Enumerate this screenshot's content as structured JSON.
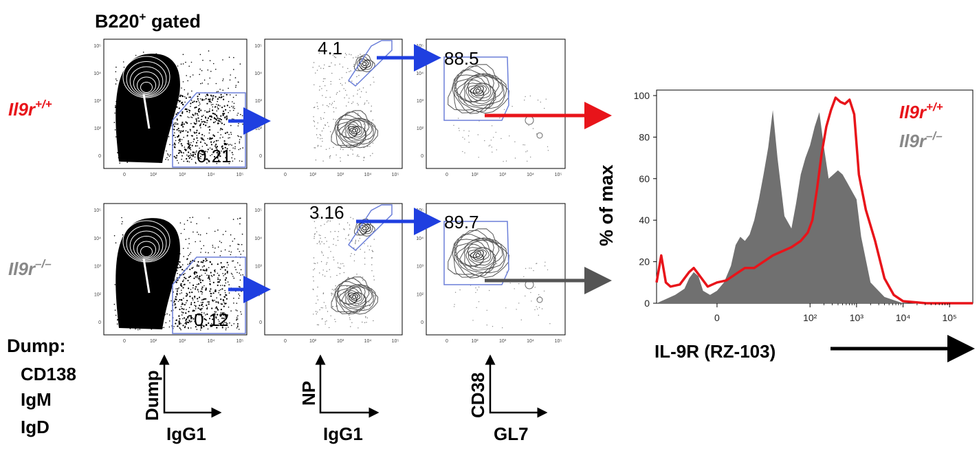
{
  "gate_header": {
    "base": "B220",
    "sup": "+",
    "suffix": " gated"
  },
  "genotypes": [
    {
      "base": "Il9r",
      "sup": "+/+",
      "color": "#e8141a"
    },
    {
      "base": "Il9r",
      "sup": "–/–",
      "color": "#888888"
    }
  ],
  "dump": {
    "title": "Dump:",
    "markers": [
      "CD138",
      "IgM",
      "IgD"
    ]
  },
  "columns": [
    {
      "y_label": "Dump",
      "x_label": "IgG1"
    },
    {
      "y_label": "NP",
      "x_label": "IgG1"
    },
    {
      "y_label": "CD38",
      "x_label": "GL7"
    }
  ],
  "gate_values": {
    "wt": [
      "0.21",
      "4.1",
      "88.5"
    ],
    "ko": [
      "0.12",
      "3.16",
      "89.7"
    ]
  },
  "colors": {
    "gate_line": "#6b7fd9",
    "arrow_blue": "#1f3fe0",
    "arrow_red": "#e8141a",
    "arrow_gray": "#555555",
    "fill_ko": "#707070"
  },
  "flow_ticks": {
    "x": [
      "0",
      "10²",
      "10³",
      "10⁴",
      "10⁵"
    ],
    "y": [
      "10⁵",
      "10⁴",
      "10³",
      "10²",
      "0"
    ]
  },
  "chart_data": {
    "type": "area",
    "xlabel": "IL-9R (RZ-103)",
    "ylabel": "% of max",
    "ylim": [
      0,
      100
    ],
    "yticks": [
      0,
      20,
      40,
      60,
      80,
      100
    ],
    "xticks": [
      {
        "value": 0,
        "label": "0"
      },
      {
        "value": 2,
        "label": "10²"
      },
      {
        "value": 3,
        "label": "10³"
      },
      {
        "value": 4,
        "label": "10⁴"
      },
      {
        "value": 5,
        "label": "10⁵"
      }
    ],
    "xlim": [
      -1.3,
      5.5
    ],
    "legend_placement": "top-right",
    "series": [
      {
        "name": "Il9r+/+",
        "style": "line",
        "color": "#e8141a",
        "x": [
          -1.3,
          -1.2,
          -1.1,
          -1.0,
          -0.8,
          -0.6,
          -0.5,
          -0.4,
          -0.2,
          0.0,
          0.2,
          0.4,
          0.6,
          0.8,
          1.0,
          1.2,
          1.4,
          1.6,
          1.8,
          1.95,
          2.05,
          2.15,
          2.25,
          2.35,
          2.45,
          2.55,
          2.65,
          2.75,
          2.85,
          2.95,
          3.05,
          3.2,
          3.4,
          3.6,
          3.8,
          4.0,
          4.5,
          5.0,
          5.5
        ],
        "y": [
          10,
          23,
          10,
          8,
          9,
          15,
          17,
          14,
          8,
          10,
          11,
          14,
          17,
          17,
          20,
          23,
          25,
          27,
          30,
          34,
          40,
          55,
          72,
          85,
          93,
          99,
          97,
          96,
          98,
          91,
          62,
          45,
          30,
          12,
          4,
          1,
          0,
          0,
          0
        ]
      },
      {
        "name": "Il9r–/–",
        "style": "fill",
        "color": "#707070",
        "x": [
          -1.3,
          -1.1,
          -0.9,
          -0.7,
          -0.6,
          -0.5,
          -0.4,
          -0.3,
          -0.15,
          0.0,
          0.15,
          0.3,
          0.4,
          0.5,
          0.6,
          0.7,
          0.8,
          0.9,
          1.0,
          1.1,
          1.2,
          1.3,
          1.45,
          1.6,
          1.7,
          1.8,
          1.9,
          2.0,
          2.1,
          2.2,
          2.3,
          2.4,
          2.5,
          2.6,
          2.7,
          2.8,
          2.9,
          3.0,
          3.1,
          3.3,
          3.6,
          4.0,
          5.5
        ],
        "y": [
          0,
          2,
          4,
          7,
          12,
          15,
          13,
          6,
          4,
          6,
          10,
          18,
          28,
          32,
          30,
          33,
          40,
          50,
          62,
          75,
          93,
          70,
          42,
          36,
          48,
          62,
          70,
          76,
          85,
          92,
          75,
          60,
          62,
          64,
          62,
          58,
          54,
          50,
          32,
          10,
          3,
          0,
          0
        ]
      }
    ]
  }
}
